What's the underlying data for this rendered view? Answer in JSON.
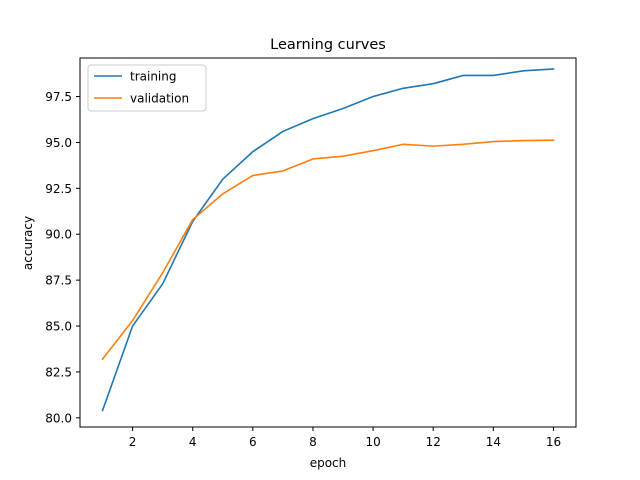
{
  "chart_data": {
    "type": "line",
    "title": "Learning curves",
    "xlabel": "epoch",
    "ylabel": "accuracy",
    "xlim": [
      0.25,
      16.75
    ],
    "ylim": [
      79.5,
      99.6
    ],
    "xticks": [
      2,
      4,
      6,
      8,
      10,
      12,
      14,
      16
    ],
    "xtick_labels": [
      "2",
      "4",
      "6",
      "8",
      "10",
      "12",
      "14",
      "16"
    ],
    "yticks": [
      80.0,
      82.5,
      85.0,
      87.5,
      90.0,
      92.5,
      95.0,
      97.5
    ],
    "ytick_labels": [
      "80.0",
      "82.5",
      "85.0",
      "87.5",
      "90.0",
      "92.5",
      "95.0",
      "97.5"
    ],
    "grid": false,
    "legend_position": "top-left",
    "x": [
      1,
      2,
      3,
      4,
      5,
      6,
      7,
      8,
      9,
      10,
      11,
      12,
      13,
      14,
      15,
      16
    ],
    "series": [
      {
        "name": "training",
        "color": "#1f77b4",
        "values": [
          80.4,
          85.0,
          87.3,
          90.7,
          93.0,
          94.5,
          95.6,
          96.3,
          96.85,
          97.5,
          97.95,
          98.2,
          98.65,
          98.65,
          98.9,
          99.0
        ]
      },
      {
        "name": "validation",
        "color": "#ff7f0e",
        "values": [
          83.2,
          85.3,
          87.9,
          90.8,
          92.2,
          93.2,
          93.45,
          94.1,
          94.25,
          94.55,
          94.9,
          94.8,
          94.9,
          95.05,
          95.1,
          95.12
        ]
      }
    ]
  }
}
